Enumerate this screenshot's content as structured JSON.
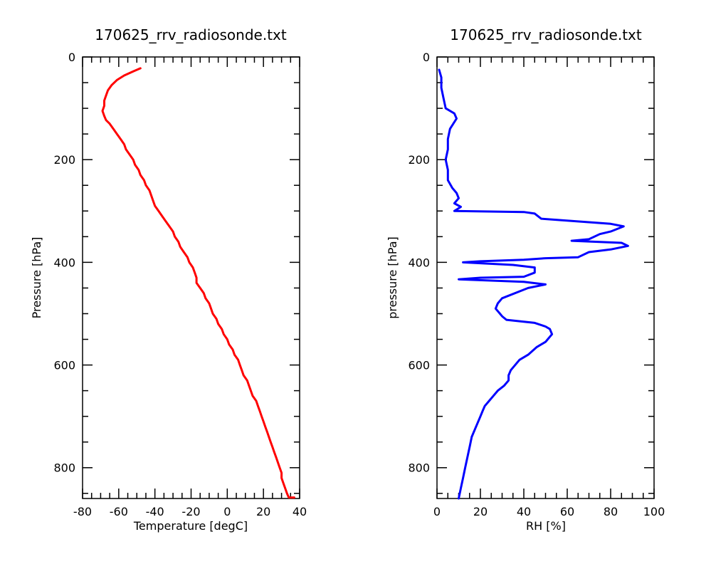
{
  "chart_data": [
    {
      "type": "line",
      "title": "170625_rrv_radiosonde.txt",
      "xlabel": "Temperature [degC]",
      "ylabel": "Pressure [hPa]",
      "xlim": [
        -80,
        40
      ],
      "ylim": [
        860,
        0
      ],
      "y_inverted": true,
      "xticks": [
        -80,
        -60,
        -40,
        -20,
        0,
        20,
        40
      ],
      "xticks_minor_step": 5,
      "yticks": [
        0,
        200,
        400,
        600,
        800
      ],
      "yticks_minor_step": 50,
      "grid": false,
      "color": "#ff0000",
      "series": [
        {
          "x_label": "temperature",
          "y_label": "pressure",
          "points": [
            [
              -48,
              22
            ],
            [
              -52,
              28
            ],
            [
              -57,
              36
            ],
            [
              -61,
              45
            ],
            [
              -64,
              55
            ],
            [
              -66,
              65
            ],
            [
              -67,
              75
            ],
            [
              -68,
              85
            ],
            [
              -68,
              95
            ],
            [
              -69,
              105
            ],
            [
              -68,
              115
            ],
            [
              -67,
              123
            ],
            [
              -65,
              130
            ],
            [
              -63,
              140
            ],
            [
              -61,
              150
            ],
            [
              -59,
              160
            ],
            [
              -57,
              170
            ],
            [
              -56,
              180
            ],
            [
              -54,
              190
            ],
            [
              -52,
              200
            ],
            [
              -51,
              210
            ],
            [
              -49,
              220
            ],
            [
              -48,
              230
            ],
            [
              -46,
              240
            ],
            [
              -45,
              250
            ],
            [
              -43,
              260
            ],
            [
              -42,
              270
            ],
            [
              -41,
              280
            ],
            [
              -40,
              290
            ],
            [
              -38,
              300
            ],
            [
              -36,
              310
            ],
            [
              -34,
              320
            ],
            [
              -32,
              330
            ],
            [
              -30,
              340
            ],
            [
              -29,
              350
            ],
            [
              -27,
              360
            ],
            [
              -26,
              370
            ],
            [
              -24,
              380
            ],
            [
              -22,
              390
            ],
            [
              -21,
              400
            ],
            [
              -19,
              410
            ],
            [
              -18,
              420
            ],
            [
              -17,
              430
            ],
            [
              -17,
              440
            ],
            [
              -15,
              450
            ],
            [
              -13,
              460
            ],
            [
              -12,
              470
            ],
            [
              -10,
              480
            ],
            [
              -9,
              490
            ],
            [
              -8,
              500
            ],
            [
              -6,
              510
            ],
            [
              -5,
              520
            ],
            [
              -3,
              530
            ],
            [
              -2,
              540
            ],
            [
              0,
              550
            ],
            [
              1,
              560
            ],
            [
              3,
              570
            ],
            [
              4,
              580
            ],
            [
              6,
              590
            ],
            [
              7,
              600
            ],
            [
              8,
              610
            ],
            [
              9,
              620
            ],
            [
              11,
              630
            ],
            [
              12,
              640
            ],
            [
              13,
              650
            ],
            [
              14,
              660
            ],
            [
              16,
              670
            ],
            [
              17,
              680
            ],
            [
              18,
              690
            ],
            [
              19,
              700
            ],
            [
              20,
              710
            ],
            [
              21,
              720
            ],
            [
              22,
              730
            ],
            [
              23,
              740
            ],
            [
              24,
              750
            ],
            [
              25,
              760
            ],
            [
              26,
              770
            ],
            [
              27,
              780
            ],
            [
              28,
              790
            ],
            [
              29,
              800
            ],
            [
              30,
              810
            ],
            [
              30,
              820
            ],
            [
              31,
              830
            ],
            [
              32,
              840
            ],
            [
              33,
              850
            ],
            [
              34,
              858
            ],
            [
              37,
              858
            ]
          ]
        }
      ]
    },
    {
      "type": "line",
      "title": "170625_rrv_radiosonde.txt",
      "xlabel": "RH [%]",
      "ylabel": "pressure [hPa]",
      "xlim": [
        0,
        100
      ],
      "ylim": [
        860,
        0
      ],
      "y_inverted": true,
      "xticks": [
        0,
        20,
        40,
        60,
        80,
        100
      ],
      "xticks_minor_step": 5,
      "yticks": [
        0,
        200,
        400,
        600,
        800
      ],
      "yticks_minor_step": 50,
      "grid": false,
      "color": "#0000ff",
      "series": [
        {
          "x_label": "RH",
          "y_label": "pressure",
          "points": [
            [
              1,
              25
            ],
            [
              2,
              40
            ],
            [
              2,
              60
            ],
            [
              3,
              80
            ],
            [
              4,
              100
            ],
            [
              8,
              110
            ],
            [
              9,
              120
            ],
            [
              6,
              140
            ],
            [
              5,
              160
            ],
            [
              5,
              180
            ],
            [
              4,
              200
            ],
            [
              5,
              220
            ],
            [
              5,
              240
            ],
            [
              7,
              255
            ],
            [
              9,
              265
            ],
            [
              10,
              275
            ],
            [
              8,
              285
            ],
            [
              11,
              292
            ],
            [
              8,
              300
            ],
            [
              40,
              302
            ],
            [
              45,
              305
            ],
            [
              48,
              315
            ],
            [
              80,
              325
            ],
            [
              86,
              330
            ],
            [
              80,
              340
            ],
            [
              75,
              345
            ],
            [
              70,
              355
            ],
            [
              62,
              358
            ],
            [
              85,
              362
            ],
            [
              88,
              368
            ],
            [
              80,
              375
            ],
            [
              70,
              380
            ],
            [
              65,
              390
            ],
            [
              50,
              392
            ],
            [
              40,
              395
            ],
            [
              20,
              398
            ],
            [
              12,
              400
            ],
            [
              35,
              405
            ],
            [
              45,
              410
            ],
            [
              45,
              420
            ],
            [
              40,
              428
            ],
            [
              20,
              430
            ],
            [
              10,
              433
            ],
            [
              40,
              438
            ],
            [
              50,
              443
            ],
            [
              42,
              450
            ],
            [
              30,
              470
            ],
            [
              28,
              480
            ],
            [
              27,
              490
            ],
            [
              29,
              500
            ],
            [
              30,
              505
            ],
            [
              32,
              512
            ],
            [
              45,
              518
            ],
            [
              50,
              525
            ],
            [
              52,
              530
            ],
            [
              53,
              540
            ],
            [
              50,
              555
            ],
            [
              46,
              565
            ],
            [
              42,
              580
            ],
            [
              38,
              590
            ],
            [
              36,
              600
            ],
            [
              34,
              610
            ],
            [
              33,
              620
            ],
            [
              33,
              630
            ],
            [
              31,
              640
            ],
            [
              28,
              650
            ],
            [
              26,
              660
            ],
            [
              24,
              670
            ],
            [
              22,
              680
            ],
            [
              21,
              690
            ],
            [
              20,
              700
            ],
            [
              18,
              720
            ],
            [
              16,
              740
            ],
            [
              15,
              760
            ],
            [
              14,
              780
            ],
            [
              13,
              800
            ],
            [
              12,
              820
            ],
            [
              11,
              840
            ],
            [
              10,
              860
            ]
          ]
        }
      ]
    }
  ]
}
